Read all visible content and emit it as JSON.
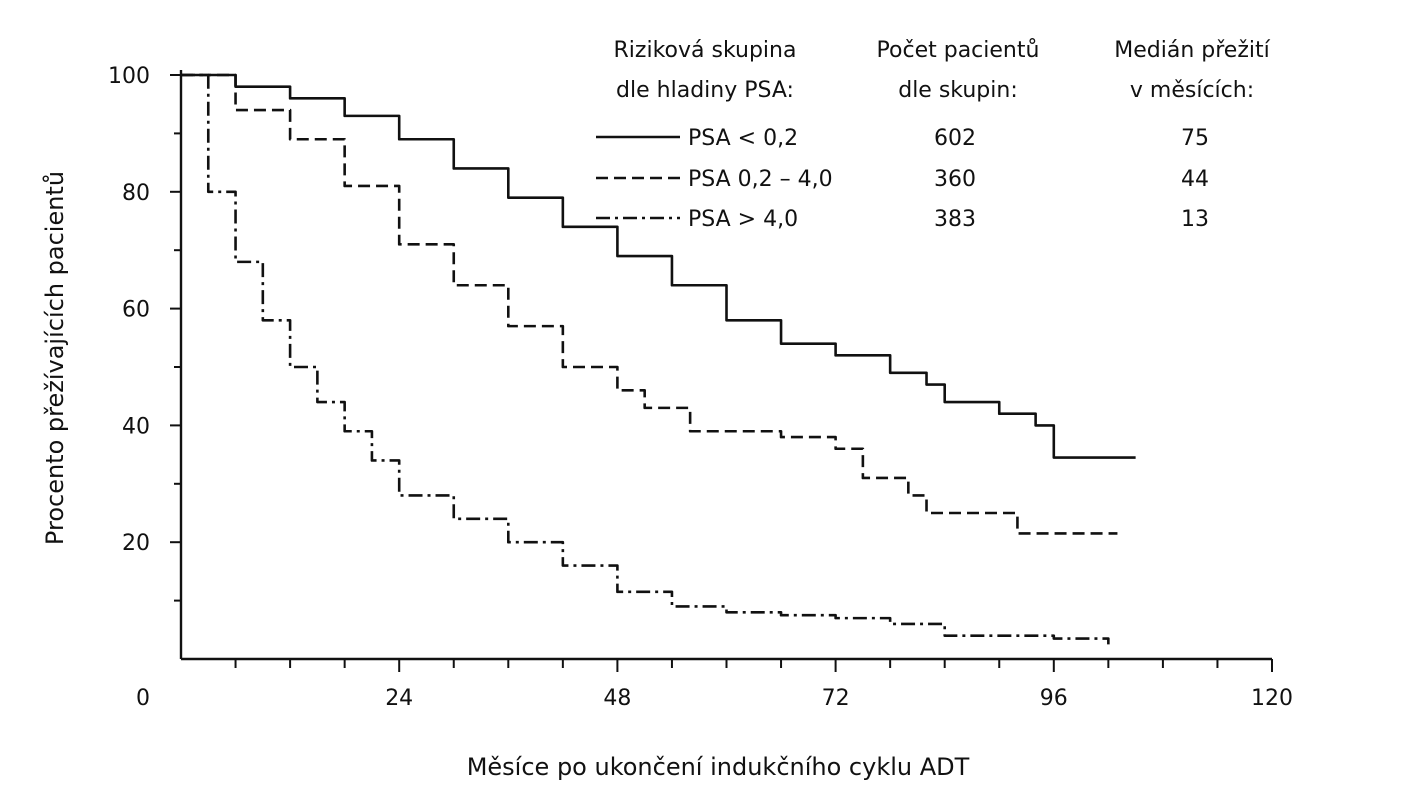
{
  "chart_data": {
    "type": "line",
    "title": "",
    "xlabel": "Měsíce po ukončení indukčního cyklu ADT",
    "ylabel": "Procento přežívajících pacientů",
    "xlim": [
      0,
      120
    ],
    "ylim": [
      0,
      100
    ],
    "x_ticks": [
      "0",
      "24",
      "48",
      "72",
      "96",
      "120"
    ],
    "y_ticks": [
      "20",
      "40",
      "60",
      "80",
      "100"
    ],
    "grid": false,
    "legend_placement": "top-right",
    "legend": {
      "headers": [
        [
          "Riziková skupina",
          "dle hladiny PSA:"
        ],
        [
          "Počet pacientů",
          "dle skupin:"
        ],
        [
          "Medián přežití",
          "v měsících:"
        ]
      ],
      "rows": [
        {
          "label": "PSA < 0,2",
          "count": "602",
          "median": "75"
        },
        {
          "label": "PSA 0,2 – 4,0",
          "count": "360",
          "median": "44"
        },
        {
          "label": "PSA > 4,0",
          "count": "383",
          "median": "13"
        }
      ]
    },
    "series": [
      {
        "name": "PSA < 0,2",
        "style": "solid",
        "points": [
          [
            0,
            100
          ],
          [
            6,
            98
          ],
          [
            12,
            96
          ],
          [
            18,
            93
          ],
          [
            24,
            89
          ],
          [
            30,
            84
          ],
          [
            36,
            79
          ],
          [
            42,
            74
          ],
          [
            48,
            69
          ],
          [
            54,
            64
          ],
          [
            60,
            58
          ],
          [
            66,
            54
          ],
          [
            72,
            52
          ],
          [
            78,
            49
          ],
          [
            82,
            47
          ],
          [
            84,
            44
          ],
          [
            88,
            44
          ],
          [
            90,
            42
          ],
          [
            94,
            40
          ],
          [
            96,
            34.5
          ],
          [
            105,
            34.5
          ]
        ]
      },
      {
        "name": "PSA 0,2 – 4,0",
        "style": "dashed",
        "points": [
          [
            0,
            100
          ],
          [
            6,
            94
          ],
          [
            12,
            89
          ],
          [
            18,
            81
          ],
          [
            24,
            71
          ],
          [
            30,
            64
          ],
          [
            36,
            57
          ],
          [
            42,
            50
          ],
          [
            48,
            46
          ],
          [
            51,
            43
          ],
          [
            56,
            39
          ],
          [
            66,
            38
          ],
          [
            72,
            36
          ],
          [
            75,
            31
          ],
          [
            80,
            28
          ],
          [
            82,
            25
          ],
          [
            90,
            25
          ],
          [
            92,
            21.5
          ],
          [
            103,
            21.5
          ]
        ]
      },
      {
        "name": "PSA > 4,0",
        "style": "dashdot",
        "points": [
          [
            0,
            100
          ],
          [
            3,
            80
          ],
          [
            6,
            68
          ],
          [
            9,
            58
          ],
          [
            12,
            50
          ],
          [
            15,
            44
          ],
          [
            18,
            39
          ],
          [
            21,
            34
          ],
          [
            24,
            28
          ],
          [
            30,
            24
          ],
          [
            36,
            20
          ],
          [
            42,
            16
          ],
          [
            48,
            11.5
          ],
          [
            54,
            9
          ],
          [
            60,
            8
          ],
          [
            66,
            7.5
          ],
          [
            72,
            7
          ],
          [
            78,
            6
          ],
          [
            84,
            4
          ],
          [
            96,
            3.5
          ],
          [
            102,
            2.5
          ]
        ]
      }
    ]
  }
}
